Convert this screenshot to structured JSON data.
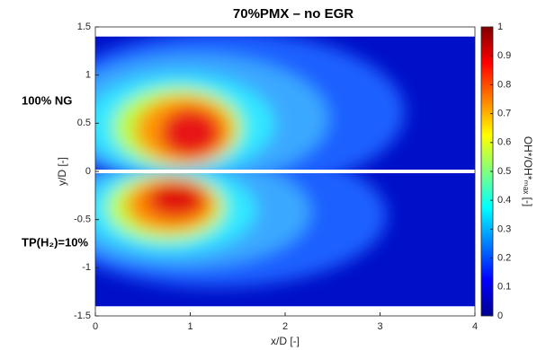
{
  "chart_data": {
    "type": "heatmap",
    "title": "70%PMX – no EGR",
    "xlabel": "x/D [-]",
    "ylabel": "y/D [-]",
    "xlim": [
      0,
      4
    ],
    "xticks": [
      0,
      1,
      2,
      3,
      4
    ],
    "ylim": [
      -1.5,
      1.5
    ],
    "yticks": [
      -1.5,
      -1,
      -0.5,
      0,
      0.5,
      1,
      1.5
    ],
    "image_extent": {
      "x": [
        0,
        4
      ],
      "y": [
        -1.4,
        1.4
      ]
    },
    "colormap": "jet",
    "colorbar": {
      "label": "OH*/OH*ₘₐₓ [-]",
      "clim": [
        0,
        1
      ],
      "ticks": [
        0,
        0.1,
        0.2,
        0.3,
        0.4,
        0.5,
        0.6,
        0.7,
        0.8,
        0.9,
        1
      ]
    },
    "annotations": [
      "100% NG",
      "TP(H₂)=10%"
    ]
  }
}
